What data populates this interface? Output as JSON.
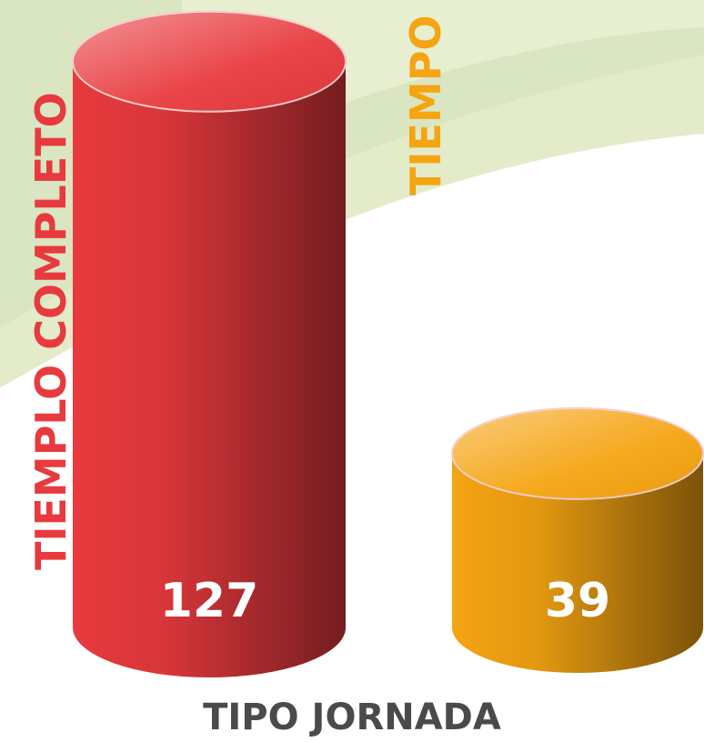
{
  "chart_data": {
    "type": "bar",
    "x_label": "TIPO JORNADA",
    "categories": [
      "TIEMPLO COMPLETO",
      "TIEMPO PARCIAL"
    ],
    "values": [
      127,
      39
    ],
    "colors": [
      "#e83a3e",
      "#f5a412"
    ]
  }
}
